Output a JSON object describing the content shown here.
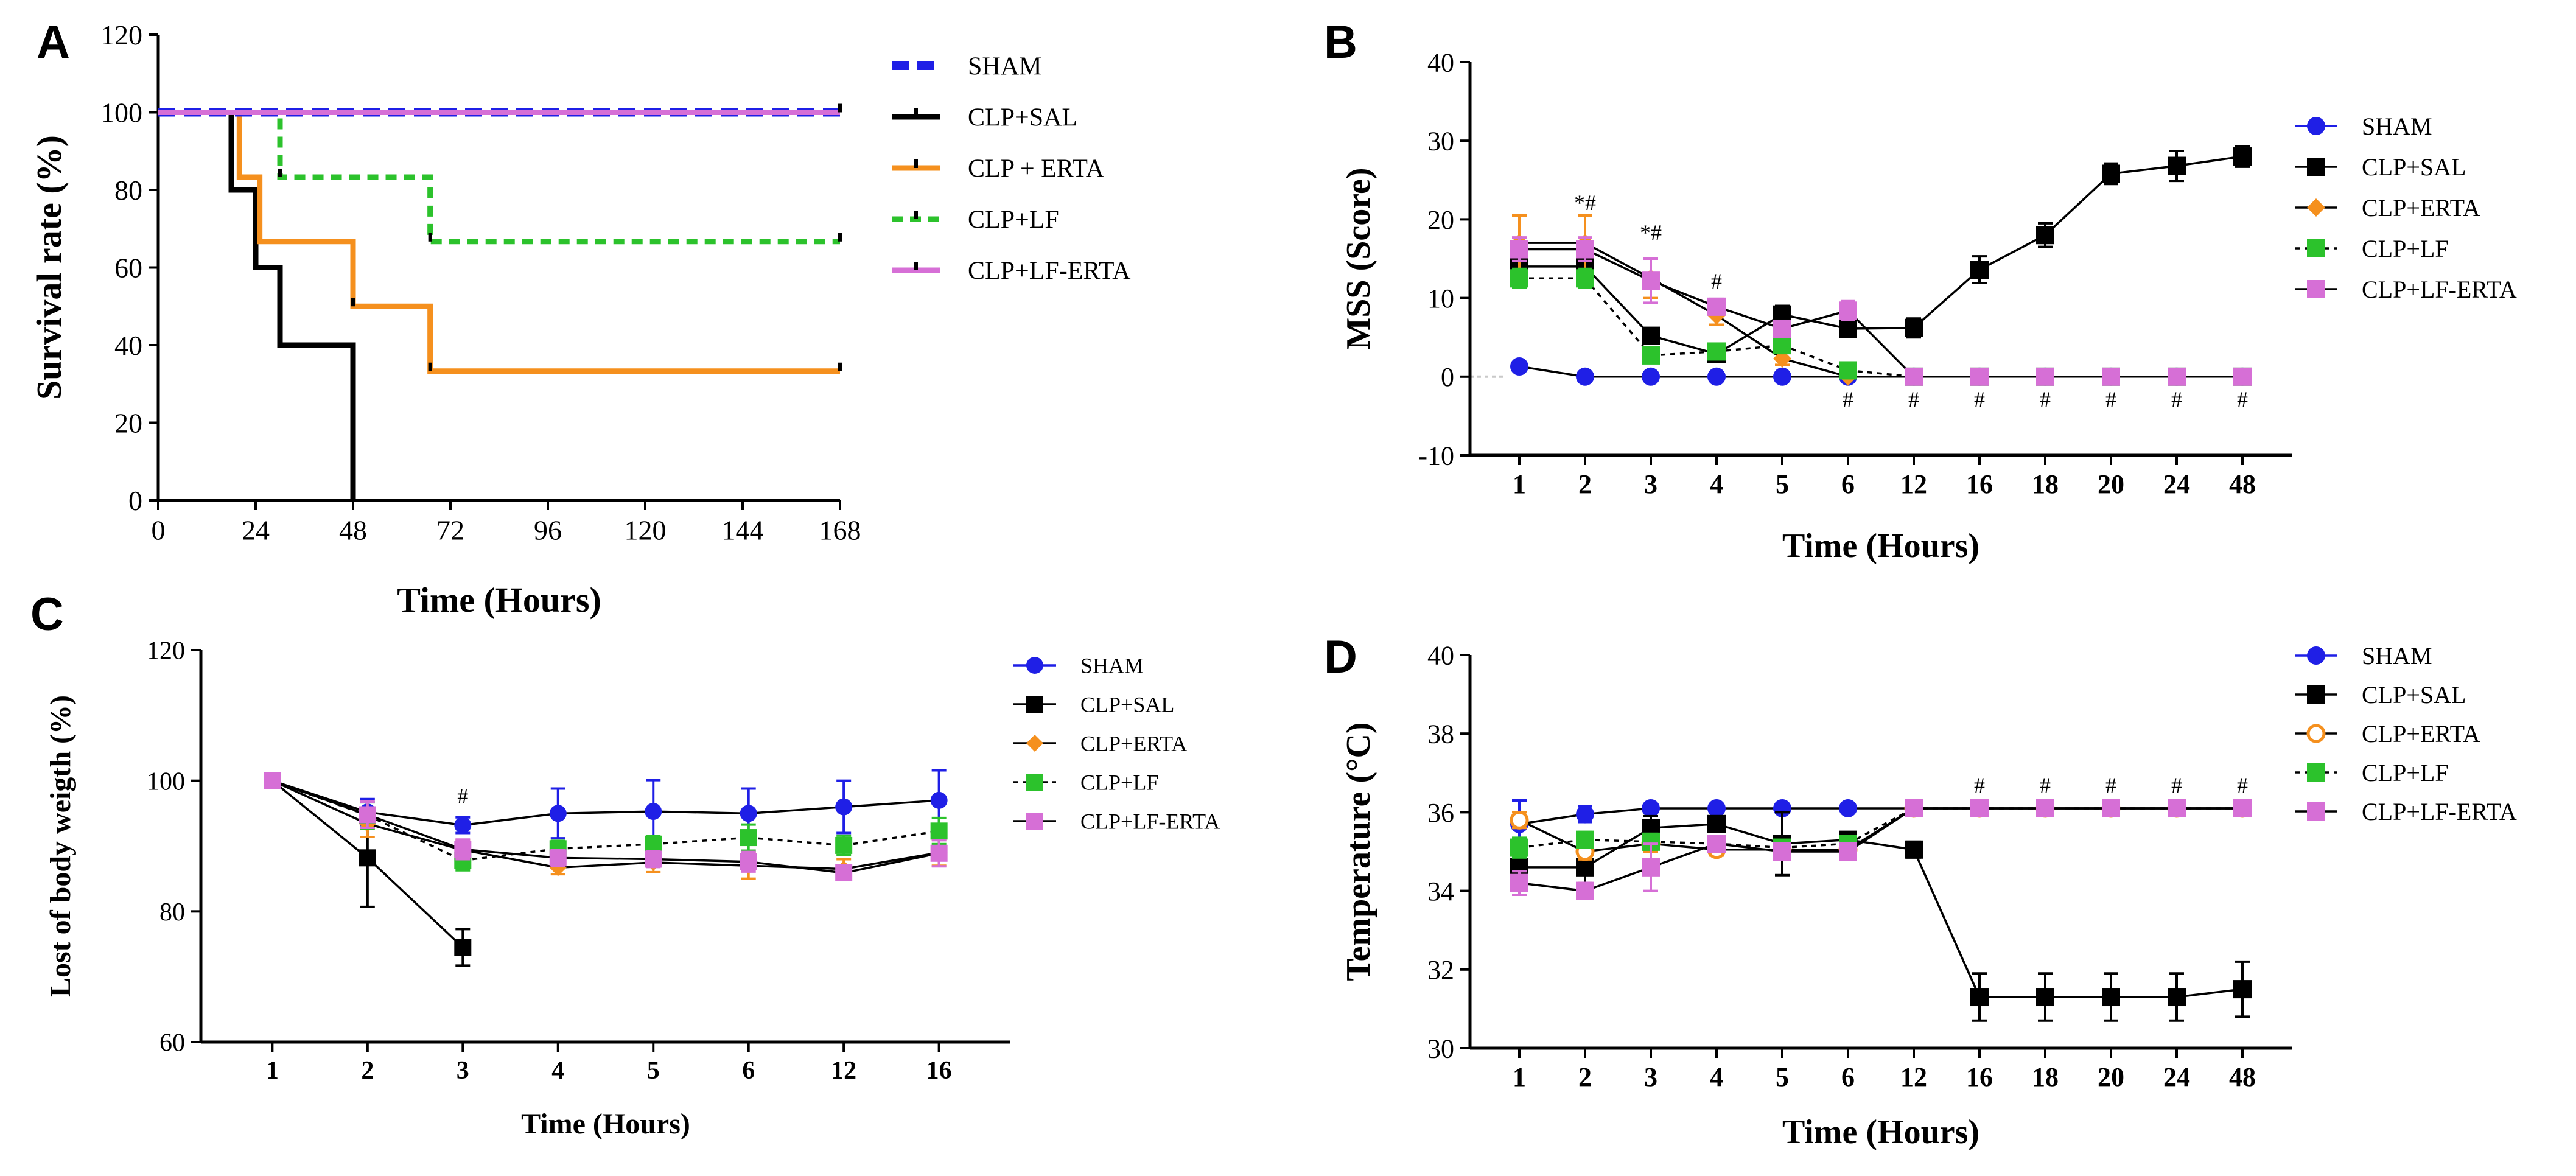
{
  "colors": {
    "sham": "#1f1fe6",
    "sal": "#000000",
    "erta": "#f5901e",
    "lf": "#2cc22c",
    "lferta": "#d66fd6"
  },
  "chart_data": [
    {
      "panel": "A",
      "type": "step-survival",
      "xlabel": "Time (Hours)",
      "ylabel": "Survival rate  (%)",
      "xlim": [
        0,
        168
      ],
      "ylim": [
        0,
        120
      ],
      "xticks": [
        0,
        24,
        48,
        72,
        96,
        120,
        144,
        168
      ],
      "yticks": [
        0,
        20,
        40,
        60,
        80,
        100,
        120
      ],
      "legend_position": "right",
      "series": [
        {
          "name": "SHAM",
          "color_key": "sham",
          "dash": "dash-thick",
          "steps": [
            [
              0,
              100
            ],
            [
              168,
              100
            ]
          ],
          "censor": []
        },
        {
          "name": "CLP+SAL",
          "color_key": "sal",
          "dash": "solid",
          "steps": [
            [
              0,
              100
            ],
            [
              18,
              100
            ],
            [
              18,
              80
            ],
            [
              24,
              80
            ],
            [
              24,
              60
            ],
            [
              30,
              60
            ],
            [
              30,
              40
            ],
            [
              48,
              40
            ],
            [
              48,
              0
            ]
          ],
          "censor": []
        },
        {
          "name": "CLP + ERTA",
          "color_key": "erta",
          "dash": "solid",
          "steps": [
            [
              0,
              100
            ],
            [
              20,
              100
            ],
            [
              20,
              83.3
            ],
            [
              25,
              83.3
            ],
            [
              25,
              66.7
            ],
            [
              48,
              66.7
            ],
            [
              48,
              50
            ],
            [
              67,
              50
            ],
            [
              67,
              33.3
            ],
            [
              168,
              33.3
            ]
          ],
          "censor": [
            [
              48,
              50
            ],
            [
              67,
              33.3
            ],
            [
              168,
              33.3
            ]
          ]
        },
        {
          "name": "CLP+LF",
          "color_key": "lf",
          "dash": "dash",
          "steps": [
            [
              0,
              100
            ],
            [
              30,
              100
            ],
            [
              30,
              83.3
            ],
            [
              67,
              83.3
            ],
            [
              67,
              66.7
            ],
            [
              168,
              66.7
            ]
          ],
          "censor": [
            [
              30,
              83.3
            ],
            [
              67,
              66.7
            ],
            [
              168,
              66.7
            ]
          ]
        },
        {
          "name": "CLP+LF-ERTA",
          "color_key": "lferta",
          "dash": "solid",
          "steps": [
            [
              0,
              100
            ],
            [
              168,
              100
            ]
          ],
          "censor": [
            [
              168,
              100
            ]
          ]
        }
      ]
    },
    {
      "panel": "B",
      "type": "line",
      "xlabel": "Time (Hours)",
      "ylabel": "MSS (Score)",
      "categories": [
        "1",
        "2",
        "3",
        "4",
        "5",
        "6",
        "12",
        "16",
        "18",
        "20",
        "24",
        "48"
      ],
      "ylim": [
        -10,
        40
      ],
      "yticks": [
        -10,
        0,
        10,
        20,
        30,
        40
      ],
      "legend_position": "right",
      "annotations": [
        {
          "x_index": 1,
          "y": 21.2,
          "text": "*#"
        },
        {
          "x_index": 2,
          "y": 17.4,
          "text": "*#"
        },
        {
          "x_index": 3,
          "y": 11.2,
          "text": "#"
        },
        {
          "x_index": 5,
          "y": -3.8,
          "text": "#"
        },
        {
          "x_index": 6,
          "y": -3.8,
          "text": "#"
        },
        {
          "x_index": 7,
          "y": -3.8,
          "text": "#"
        },
        {
          "x_index": 8,
          "y": -3.8,
          "text": "#"
        },
        {
          "x_index": 9,
          "y": -3.8,
          "text": "#"
        },
        {
          "x_index": 10,
          "y": -3.8,
          "text": "#"
        },
        {
          "x_index": 11,
          "y": -3.8,
          "text": "#"
        }
      ],
      "series": [
        {
          "name": "SHAM",
          "color_key": "sham",
          "marker": "circle",
          "dash": "solid",
          "values": [
            1.3,
            0,
            0,
            0,
            0,
            0,
            0,
            0,
            0,
            0,
            0,
            0
          ],
          "errors": [
            0,
            0,
            0,
            0,
            0,
            0,
            0,
            0,
            0,
            0,
            0,
            0
          ]
        },
        {
          "name": "CLP+SAL",
          "color_key": "sal",
          "marker": "square",
          "dash": "solid",
          "values": [
            14,
            14,
            5.2,
            2.9,
            7.9,
            6.1,
            6.2,
            13.6,
            18,
            25.8,
            26.8,
            28
          ],
          "errors": [
            1.5,
            1.5,
            0.9,
            0.6,
            1.1,
            1,
            1.2,
            1.7,
            1.5,
            1.3,
            1.9,
            1.3
          ]
        },
        {
          "name": "CLP+ERTA",
          "color_key": "erta",
          "marker": "diamond",
          "dash": "solid",
          "values": [
            17,
            17,
            12.5,
            7.8,
            2.3,
            0,
            0,
            0,
            0,
            0,
            0,
            0
          ],
          "errors": [
            3.5,
            3.5,
            2.5,
            1.2,
            0.8,
            0,
            0,
            0,
            0,
            0,
            0,
            0
          ]
        },
        {
          "name": "CLP+LF",
          "color_key": "lf",
          "marker": "square",
          "dash": "dash",
          "values": [
            12.5,
            12.5,
            2.7,
            3.2,
            4,
            0.8,
            0,
            0,
            0,
            0,
            0,
            0
          ],
          "errors": [
            1.2,
            1.2,
            0.9,
            0.5,
            0.6,
            0.4,
            0,
            0,
            0,
            0,
            0,
            0
          ]
        },
        {
          "name": "CLP+LF-ERTA",
          "color_key": "lferta",
          "marker": "square",
          "dash": "solid",
          "values": [
            16.2,
            16.2,
            12.2,
            8.9,
            6.1,
            8.4,
            0,
            0,
            0,
            0,
            0,
            0
          ],
          "errors": [
            1.5,
            1.5,
            2.8,
            1,
            1,
            1.2,
            0,
            0,
            0,
            0,
            0,
            0
          ]
        }
      ]
    },
    {
      "panel": "C",
      "type": "line",
      "xlabel": "Time (Hours)",
      "ylabel": "Lost of body weigth (%)",
      "categories": [
        "1",
        "2",
        "3",
        "4",
        "5",
        "6",
        "12",
        "16"
      ],
      "ylim": [
        60,
        120
      ],
      "yticks": [
        60,
        80,
        100,
        120
      ],
      "legend_position": "right",
      "annotations": [
        {
          "x_index": 2,
          "y": 96.5,
          "text": "#"
        }
      ],
      "series": [
        {
          "name": "SHAM",
          "color_key": "sham",
          "marker": "circle",
          "dash": "solid",
          "values": [
            100,
            95.2,
            93.2,
            95,
            95.3,
            95,
            96,
            97
          ],
          "errors": [
            0,
            2,
            1.2,
            3.8,
            4.8,
            3.8,
            4,
            4.6
          ]
        },
        {
          "name": "CLP+SAL",
          "color_key": "sal",
          "marker": "square",
          "dash": "solid",
          "values": [
            100,
            88.2,
            74.5,
            null,
            null,
            null,
            null,
            null
          ],
          "errors": [
            0,
            7.5,
            2.8,
            0,
            0,
            0,
            0,
            0
          ]
        },
        {
          "name": "CLP+ERTA",
          "color_key": "erta",
          "marker": "diamond",
          "dash": "solid",
          "values": [
            100,
            93.4,
            89.4,
            86.7,
            87.5,
            87,
            86.5,
            89
          ],
          "errors": [
            0,
            2,
            1.5,
            1,
            1.5,
            2,
            1.5,
            2
          ]
        },
        {
          "name": "CLP+LF",
          "color_key": "lf",
          "marker": "square",
          "dash": "dash",
          "values": [
            100,
            94.7,
            87.8,
            89.6,
            90.3,
            91.3,
            90.1,
            92.3
          ],
          "errors": [
            0,
            2,
            1.5,
            1.2,
            1.2,
            2,
            1.5,
            2
          ]
        },
        {
          "name": "CLP+LF-ERTA",
          "color_key": "lferta",
          "marker": "square",
          "dash": "solid",
          "values": [
            100,
            94.8,
            89.5,
            88.2,
            88,
            87.6,
            85.9,
            88.9
          ],
          "errors": [
            0,
            2,
            1.5,
            1.2,
            1.2,
            1.5,
            1,
            2
          ]
        }
      ]
    },
    {
      "panel": "D",
      "type": "line",
      "xlabel": "Time (Hours)",
      "ylabel": "Temperature (°C)",
      "categories": [
        "1",
        "2",
        "3",
        "4",
        "5",
        "6",
        "12",
        "16",
        "18",
        "20",
        "24",
        "48"
      ],
      "ylim": [
        30,
        40
      ],
      "yticks": [
        30,
        32,
        34,
        36,
        38,
        40
      ],
      "legend_position": "right",
      "annotations": [
        {
          "x_index": 7,
          "y": 36.5,
          "text": "#"
        },
        {
          "x_index": 8,
          "y": 36.5,
          "text": "#"
        },
        {
          "x_index": 9,
          "y": 36.5,
          "text": "#"
        },
        {
          "x_index": 10,
          "y": 36.5,
          "text": "#"
        },
        {
          "x_index": 11,
          "y": 36.5,
          "text": "#"
        }
      ],
      "series": [
        {
          "name": "SHAM",
          "color_key": "sham",
          "marker": "circle",
          "dash": "solid",
          "values": [
            35.7,
            35.95,
            36.1,
            36.1,
            36.1,
            36.1,
            36.1,
            36.1,
            36.1,
            36.1,
            36.1,
            36.1
          ],
          "errors": [
            0.6,
            0.2,
            0,
            0,
            0,
            0,
            0,
            0,
            0,
            0,
            0,
            0
          ]
        },
        {
          "name": "CLP+SAL",
          "color_key": "sal",
          "marker": "square",
          "dash": "solid",
          "values": [
            34.6,
            34.6,
            35.6,
            35.7,
            35.2,
            35.3,
            35.05,
            31.3,
            31.3,
            31.3,
            31.3,
            31.5
          ],
          "errors": [
            0.3,
            0.4,
            0.3,
            0.15,
            0.8,
            0.15,
            0.2,
            0.6,
            0.6,
            0.6,
            0.6,
            0.7
          ]
        },
        {
          "name": "CLP+ERTA",
          "color_key": "erta",
          "marker": "open-circle",
          "dash": "solid",
          "values": [
            35.8,
            35,
            35.2,
            35.05,
            35.05,
            35.05,
            36.1,
            36.1,
            36.1,
            36.1,
            36.1,
            36.1
          ],
          "errors": [
            0.2,
            0.2,
            0.2,
            0.15,
            0.15,
            0.15,
            0,
            0,
            0,
            0,
            0,
            0
          ]
        },
        {
          "name": "CLP+LF",
          "color_key": "lf",
          "marker": "square",
          "dash": "dash",
          "values": [
            35.1,
            35.3,
            35.25,
            35.2,
            35.1,
            35.2,
            36.1,
            36.1,
            36.1,
            36.1,
            36.1,
            36.1
          ],
          "errors": [
            0.25,
            0.2,
            0.2,
            0.15,
            0.15,
            0.15,
            0,
            0,
            0,
            0,
            0,
            0
          ]
        },
        {
          "name": "CLP+LF-ERTA",
          "color_key": "lferta",
          "marker": "square",
          "dash": "solid",
          "values": [
            34.2,
            34,
            34.6,
            35.2,
            35,
            35,
            36.1,
            36.1,
            36.1,
            36.1,
            36.1,
            36.1
          ],
          "errors": [
            0.3,
            0.2,
            0.6,
            0.2,
            0.2,
            0.15,
            0,
            0,
            0,
            0,
            0,
            0
          ]
        }
      ]
    }
  ]
}
